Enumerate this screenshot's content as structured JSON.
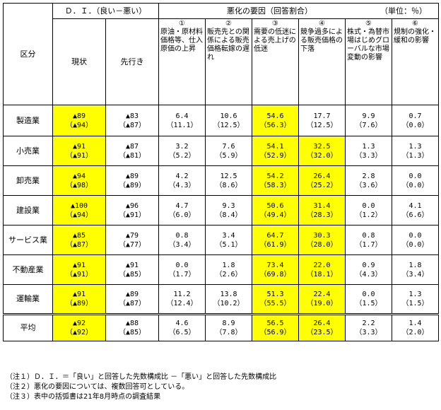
{
  "header": {
    "category": "区分",
    "di_title": "Ｄ．Ｉ．（良い－悪い）",
    "di_current": "現状",
    "di_future": "先行き",
    "factors_title": "悪化の要因（回答割合）",
    "unit": "（単位：％）",
    "factors": [
      {
        "num": "①",
        "text": "原油・原材料価格等、仕入原価の上昇"
      },
      {
        "num": "②",
        "text": "販売先との関係による販売価格転嫁の遅れ"
      },
      {
        "num": "③",
        "text": "需要の低迷による売上げの低迷"
      },
      {
        "num": "④",
        "text": "競争過多による販売価格の下落"
      },
      {
        "num": "⑤",
        "text": "株式・為替市場はじめグローバルな市場変動の影響"
      },
      {
        "num": "⑥",
        "text": "規制の強化・緩和の影響"
      }
    ]
  },
  "rows": [
    {
      "label": "製造業",
      "cur": [
        "▲89",
        "（▲94）"
      ],
      "fut": [
        "▲83",
        "（▲87）"
      ],
      "f": [
        [
          "6.4",
          "（11.1）"
        ],
        [
          "10.6",
          "（12.5）"
        ],
        [
          "54.6",
          "（56.3）"
        ],
        [
          "17.7",
          "（12.5）"
        ],
        [
          "9.9",
          "（7.6）"
        ],
        [
          "0.7",
          "（0.0）"
        ]
      ],
      "hl": [
        2
      ]
    },
    {
      "label": "小売業",
      "cur": [
        "▲91",
        "（▲91）"
      ],
      "fut": [
        "▲87",
        "（▲81）"
      ],
      "f": [
        [
          "3.2",
          "（5.2）"
        ],
        [
          "7.6",
          "（5.9）"
        ],
        [
          "54.1",
          "（52.9）"
        ],
        [
          "32.5",
          "（32.0）"
        ],
        [
          "1.3",
          "（3.3）"
        ],
        [
          "1.3",
          "（1.3）"
        ]
      ],
      "hl": [
        2,
        3
      ]
    },
    {
      "label": "卸売業",
      "cur": [
        "▲94",
        "（▲98）"
      ],
      "fut": [
        "▲89",
        "（▲89）"
      ],
      "f": [
        [
          "4.2",
          "（4.3）"
        ],
        [
          "12.5",
          "（8.6）"
        ],
        [
          "54.2",
          "（58.3）"
        ],
        [
          "26.4",
          "（25.2）"
        ],
        [
          "2.8",
          "（3.6）"
        ],
        [
          "0.0",
          "（0.0）"
        ]
      ],
      "hl": [
        2,
        3
      ]
    },
    {
      "label": "建設業",
      "cur": [
        "▲100",
        "（▲94）"
      ],
      "fut": [
        "▲96",
        "（▲91）"
      ],
      "f": [
        [
          "4.7",
          "（6.0）"
        ],
        [
          "9.3",
          "（8.4）"
        ],
        [
          "50.6",
          "（49.4）"
        ],
        [
          "31.4",
          "（28.3）"
        ],
        [
          "0.0",
          "（1.2）"
        ],
        [
          "4.1",
          "（6.6）"
        ]
      ],
      "hl": [
        2,
        3
      ]
    },
    {
      "label": "サービス業",
      "cur": [
        "▲85",
        "（▲87）"
      ],
      "fut": [
        "▲79",
        "（▲77）"
      ],
      "f": [
        [
          "0.8",
          "（3.4）"
        ],
        [
          "3.4",
          "（5.1）"
        ],
        [
          "64.7",
          "（61.9）"
        ],
        [
          "30.3",
          "（28.0）"
        ],
        [
          "0.8",
          "（1.7）"
        ],
        [
          "0.0",
          "（0.0）"
        ]
      ],
      "hl": [
        2,
        3
      ]
    },
    {
      "label": "不動産業",
      "cur": [
        "▲91",
        "（▲91）"
      ],
      "fut": [
        "▲91",
        "（▲85）"
      ],
      "f": [
        [
          "0.0",
          "（1.7）"
        ],
        [
          "1.8",
          "（2.6）"
        ],
        [
          "73.4",
          "（69.8）"
        ],
        [
          "22.0",
          "（18.1）"
        ],
        [
          "0.9",
          "（4.3）"
        ],
        [
          "1.8",
          "（3.4）"
        ]
      ],
      "hl": [
        2,
        3
      ]
    },
    {
      "label": "運輸業",
      "cur": [
        "▲91",
        "（▲89）"
      ],
      "fut": [
        "▲89",
        "（▲87）"
      ],
      "f": [
        [
          "11.2",
          "（12.4）"
        ],
        [
          "13.8",
          "（10.2）"
        ],
        [
          "51.3",
          "（55.5）"
        ],
        [
          "22.4",
          "（19.0）"
        ],
        [
          "0.0",
          "（1.5）"
        ],
        [
          "1.3",
          "（1.5）"
        ]
      ],
      "hl": [
        2,
        3
      ]
    },
    {
      "label": "平均",
      "cur": [
        "▲92",
        "（▲92）"
      ],
      "fut": [
        "▲88",
        "（▲85）"
      ],
      "f": [
        [
          "4.6",
          "（6.5）"
        ],
        [
          "8.9",
          "（7.8）"
        ],
        [
          "56.5",
          "（56.9）"
        ],
        [
          "26.4",
          "（23.5）"
        ],
        [
          "2.2",
          "（3.3）"
        ],
        [
          "1.4",
          "（2.0）"
        ]
      ],
      "hl": [
        2,
        3
      ]
    }
  ],
  "notes": [
    "（注１）Ｄ．Ｉ．＝「良い」と回答した先数構成比 －「悪い」と回答した先数構成比",
    "（注２）悪化の要因については、複数回答可としている。",
    "（注３）表中の括弧書は21年8月時点の調査結果"
  ]
}
